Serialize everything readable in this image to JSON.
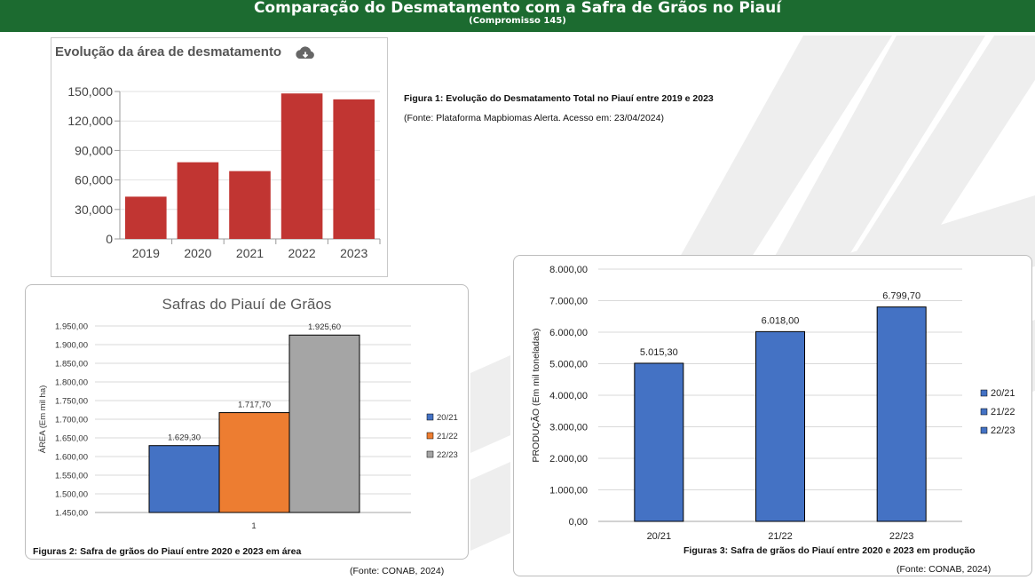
{
  "header": {
    "title": "Comparação do Desmatamento com a Safra de Grãos no Piauí",
    "subtitle": "(Compromisso 145)"
  },
  "colors": {
    "header_bg": "#1c6b30",
    "deforestation_bar": "#c13532",
    "series_2021": "#4472c4",
    "series_2122": "#ed7d31",
    "series_2223": "#a5a5a5"
  },
  "figure1": {
    "caption": "Figura 1: Evolução do Desmatamento Total no Piauí entre 2019 e 2023",
    "source": "(Fonte: Plataforma Mapbiomas Alerta. Acesso em: 23/04/2024)",
    "download_icon": "cloud-download-icon"
  },
  "figure2": {
    "caption": "Figuras 2: Safra de grãos do Piauí entre 2020 e 2023 em área",
    "source": "(Fonte: CONAB, 2024)"
  },
  "figure3": {
    "caption": "Figuras 3: Safra de grãos do Piauí entre 2020 e 2023 em produção",
    "source": "(Fonte: CONAB, 2024)"
  },
  "chart_data": [
    {
      "type": "bar",
      "title": "Evolução da área de desmatamento",
      "categories": [
        "2019",
        "2020",
        "2021",
        "2022",
        "2023"
      ],
      "values": [
        43000,
        78000,
        69000,
        148000,
        142000
      ],
      "ylim": [
        0,
        150000
      ],
      "yticks": [
        0,
        30000,
        60000,
        90000,
        120000,
        150000
      ],
      "ytick_labels": [
        "0",
        "30,000",
        "60,000",
        "90,000",
        "120,000",
        "150,000"
      ],
      "xlabel": "",
      "ylabel": "",
      "grid": true
    },
    {
      "type": "bar",
      "title": "Safras do Piauí de Grãos",
      "categories": [
        "1"
      ],
      "series": [
        {
          "name": "20/21",
          "values": [
            1629.3
          ],
          "label": "1.629,30"
        },
        {
          "name": "21/22",
          "values": [
            1717.7
          ],
          "label": "1.717,70"
        },
        {
          "name": "22/23",
          "values": [
            1925.6
          ],
          "label": "1.925,60"
        }
      ],
      "ylim": [
        1450,
        1950
      ],
      "yticks": [
        1450,
        1500,
        1550,
        1600,
        1650,
        1700,
        1750,
        1800,
        1850,
        1900,
        1950
      ],
      "ytick_labels": [
        "1.450,00",
        "1.500,00",
        "1.550,00",
        "1.600,00",
        "1.650,00",
        "1.700,00",
        "1.750,00",
        "1.800,00",
        "1.850,00",
        "1.900,00",
        "1.950,00"
      ],
      "xlabel": "",
      "ylabel": "ÁREA (Em mil ha)",
      "legend": "right",
      "grid": true
    },
    {
      "type": "bar",
      "title": "",
      "categories": [
        "20/21",
        "21/22",
        "22/23"
      ],
      "values": [
        5015.3,
        6018.0,
        6799.7
      ],
      "value_labels": [
        "5.015,30",
        "6.018,00",
        "6.799,70"
      ],
      "legend_labels": [
        "20/21",
        "21/22",
        "22/23"
      ],
      "ylim": [
        0,
        8000
      ],
      "yticks": [
        0,
        1000,
        2000,
        3000,
        4000,
        5000,
        6000,
        7000,
        8000
      ],
      "ytick_labels": [
        "0,00",
        "1.000,00",
        "2.000,00",
        "3.000,00",
        "4.000,00",
        "5.000,00",
        "6.000,00",
        "7.000,00",
        "8.000,00"
      ],
      "xlabel": "",
      "ylabel": "PRODUÇÃO (Em mil toneladas)",
      "legend": "right",
      "grid": true
    }
  ]
}
